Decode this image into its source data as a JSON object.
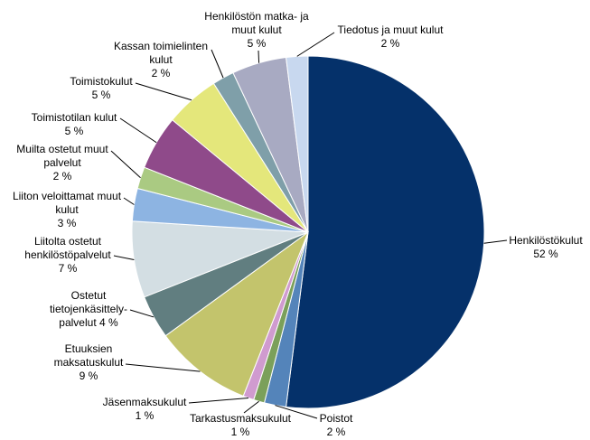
{
  "chart_data": {
    "type": "pie",
    "legend": "none",
    "categories": [
      "Henkilöstökulut",
      "Poistot",
      "Tarkastusmaksukulut",
      "Jäsenmaksukulut",
      "Etuuksien maksatuskulut",
      "Ostetut tietojenkäsittely-palvelut",
      "Liitolta ostetut henkilöstöpalvelut",
      "Liiton veloittamat muut kulut",
      "Muilta ostetut muut palvelut",
      "Toimistotilan kulut",
      "Toimistokulut",
      "Kassan toimielinten kulut",
      "Henkilöstön matka- ja muut kulut",
      "Tiedotus ja muut kulut"
    ],
    "values": [
      52,
      2,
      1,
      1,
      9,
      4,
      7,
      3,
      2,
      5,
      5,
      2,
      5,
      2
    ],
    "data_labels": [
      "52 %",
      "2 %",
      "1 %",
      "1 %",
      "9 %",
      "4 %",
      "7 %",
      "3 %",
      "2 %",
      "5 %",
      "5 %",
      "2 %",
      "5 %",
      "2 %"
    ],
    "colors": [
      "#05316A",
      "#5484BA",
      "#7BA05A",
      "#D09BCF",
      "#C3C46C",
      "#617E80",
      "#D3DEE3",
      "#8DB4E2",
      "#AACA82",
      "#8F4A8A",
      "#E4E77B",
      "#7F9FA9",
      "#A8AAC2",
      "#C8D8EF"
    ]
  }
}
